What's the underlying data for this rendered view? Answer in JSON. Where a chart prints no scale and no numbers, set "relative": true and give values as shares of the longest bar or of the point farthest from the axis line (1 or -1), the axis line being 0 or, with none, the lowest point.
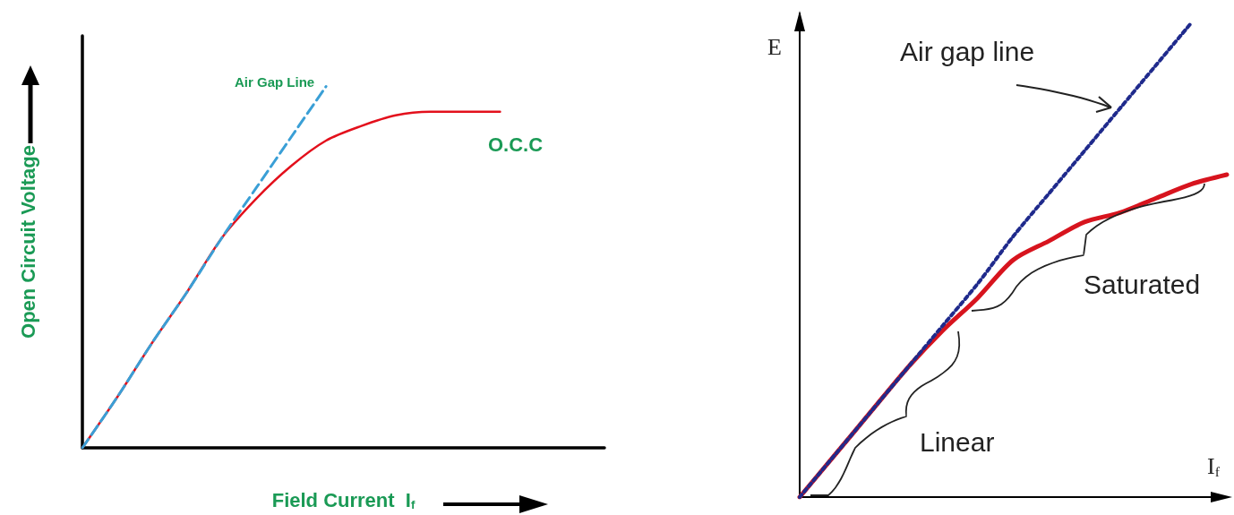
{
  "chart_data": [
    {
      "type": "line",
      "relative": true,
      "ylabel": "Open Circuit Voltage",
      "xlabel": "Field Current  I$_{f}$",
      "categories": [
        null,
        null,
        null,
        null,
        null,
        null,
        null,
        null,
        null,
        null,
        null,
        null,
        null,
        null,
        null,
        null
      ],
      "grid": false,
      "legend": false,
      "marker": "none",
      "series": [
        {
          "name": "O.C.C",
          "color": "#e3101c",
          "line_style": "solid",
          "values": [
            0,
            0.14,
            0.29,
            0.43,
            0.58,
            0.69,
            0.78,
            0.85,
            0.89,
            0.92,
            0.93,
            0.93,
            0.93,
            null,
            null,
            null
          ]
        },
        {
          "name": "Air Gap Line",
          "color": "#3a9fd6",
          "line_style": "dashed",
          "values": [
            0,
            0.14,
            0.29,
            0.43,
            0.58,
            0.72,
            0.86,
            1.0,
            null,
            null,
            null,
            null,
            null,
            null,
            null,
            null
          ]
        }
      ]
    },
    {
      "type": "line",
      "relative": true,
      "ylabel": "E",
      "xlabel": "I$_{f}$",
      "categories": [
        null,
        null,
        null,
        null,
        null,
        null,
        null,
        null,
        null,
        null,
        null,
        null,
        null
      ],
      "grid": false,
      "legend": false,
      "marker": "none",
      "annotations": [
        "Saturated",
        "Linear"
      ],
      "series": [
        {
          "color": "#d7141e",
          "line_style": "solid",
          "values": [
            0,
            0.09,
            0.18,
            0.27,
            0.35,
            0.42,
            0.5,
            0.54,
            0.58,
            0.6,
            0.63,
            0.66,
            0.68
          ]
        },
        {
          "name": "Air gap line",
          "color": "#1f2a8c",
          "line_style": "dotted",
          "values": [
            0,
            0.09,
            0.18,
            0.27,
            0.36,
            0.45,
            0.55,
            0.64,
            0.73,
            0.82,
            0.91,
            1.0,
            null
          ]
        }
      ]
    }
  ]
}
